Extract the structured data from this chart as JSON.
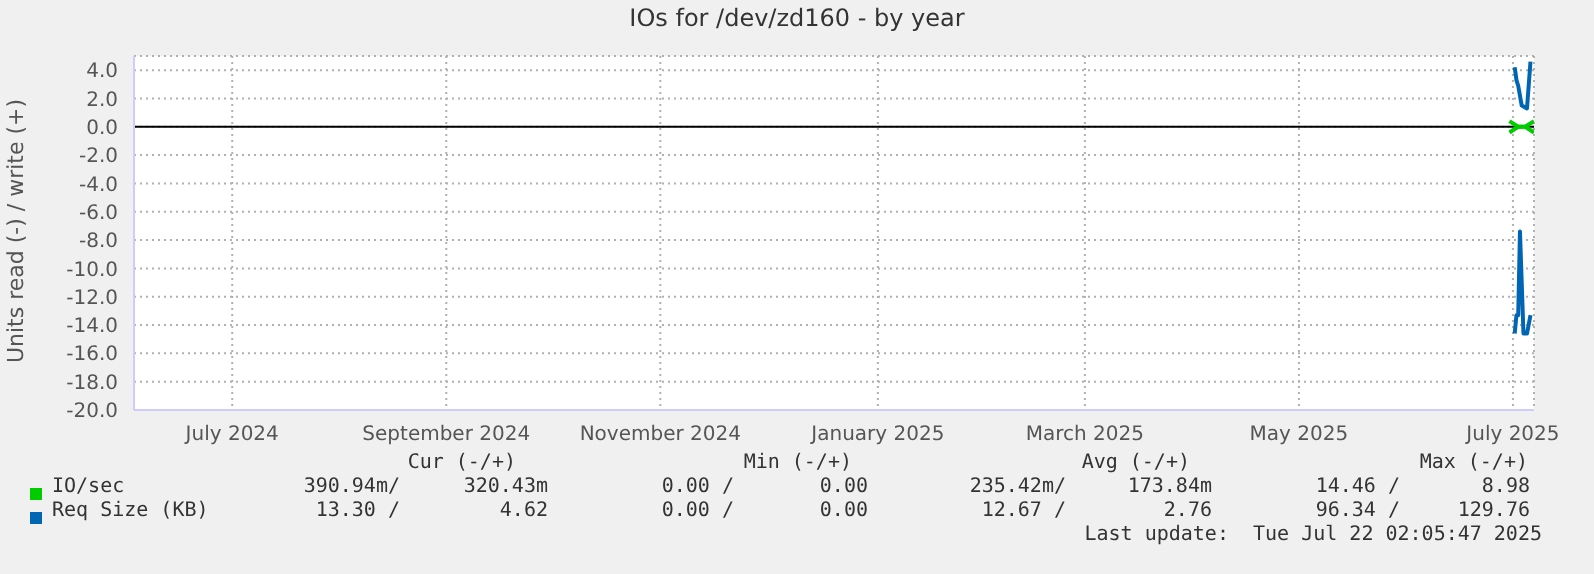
{
  "chart_data": {
    "type": "line",
    "title": "IOs for /dev/zd160 - by year",
    "ylabel": "Units read (-) / write (+)",
    "xlim": [
      "2024-06-18",
      "2025-07-22"
    ],
    "xticks": [
      {
        "value": "2024-07-16",
        "label": "July 2024"
      },
      {
        "value": "2024-09-15",
        "label": "September 2024"
      },
      {
        "value": "2024-11-15",
        "label": "November 2024"
      },
      {
        "value": "2025-01-16",
        "label": "January 2025"
      },
      {
        "value": "2025-03-16",
        "label": "March 2025"
      },
      {
        "value": "2025-05-16",
        "label": "May 2025"
      },
      {
        "value": "2025-07-16",
        "label": "July 2025"
      }
    ],
    "ylim": [
      -20,
      5
    ],
    "yticks": [
      {
        "value": 4,
        "label": "4.0"
      },
      {
        "value": 2,
        "label": "2.0"
      },
      {
        "value": 0,
        "label": "0.0"
      },
      {
        "value": -2,
        "label": "-2.0"
      },
      {
        "value": -4,
        "label": "-4.0"
      },
      {
        "value": -6,
        "label": "-6.0"
      },
      {
        "value": -8,
        "label": "-8.0"
      },
      {
        "value": -10,
        "label": "-10.0"
      },
      {
        "value": -12,
        "label": "-12.0"
      },
      {
        "value": -14,
        "label": "-14.0"
      },
      {
        "value": -16,
        "label": "-16.0"
      },
      {
        "value": -18,
        "label": "-18.0"
      },
      {
        "value": -20,
        "label": "-20.0"
      }
    ],
    "grid": true,
    "legend": "bottom",
    "ref_lines": [
      {
        "axis": "y",
        "value": 0,
        "color": "#000000"
      }
    ],
    "series": [
      {
        "color": "#00cc00",
        "x": [
          "2025-07-15T00:00",
          "2025-07-17T12:00",
          "2025-07-19T12:00",
          "2025-07-22T00:00"
        ],
        "values": [
          -0.4,
          0,
          0,
          -0.4
        ]
      },
      {
        "name": "IO/sec",
        "color": "#00cc00",
        "x": [
          "2025-07-15T00:00",
          "2025-07-17T12:00",
          "2025-07-19T12:00",
          "2025-07-22T00:00"
        ],
        "values": [
          0.4,
          0,
          0,
          0.4
        ]
      },
      {
        "color": "#0066b3",
        "x": [
          "2025-07-16T12:00",
          "2025-07-17T00:00",
          "2025-07-17T12:00",
          "2025-07-18T00:00",
          "2025-07-19T00:00",
          "2025-07-20T00:00",
          "2025-07-21T00:00"
        ],
        "values": [
          -14.6,
          -13.3,
          -13.3,
          -7.4,
          -14.6,
          -14.6,
          -13.3
        ]
      },
      {
        "name": "Req Size (KB)",
        "color": "#0066b3",
        "x": [
          "2025-07-16T12:00",
          "2025-07-17T00:00",
          "2025-07-17T12:00",
          "2025-07-18T12:00",
          "2025-07-20T00:00",
          "2025-07-21T00:00"
        ],
        "values": [
          4.2,
          3.3,
          2.9,
          1.5,
          1.3,
          4.6
        ]
      }
    ],
    "annotations": [
      "Cur (-/+)",
      "Min (-/+)",
      "Avg (-/+)",
      "Max (-/+)",
      "390.94m/",
      "320.43m",
      "0.00 /",
      "0.00",
      "235.42m/",
      "173.84m",
      "14.46 /",
      "8.98",
      "13.30 /",
      "4.62",
      "0.00 /",
      "0.00",
      "12.67 /",
      "2.76",
      "96.34 /",
      "129.76",
      "Last update:  Tue Jul 22 02:05:47 2025"
    ]
  }
}
